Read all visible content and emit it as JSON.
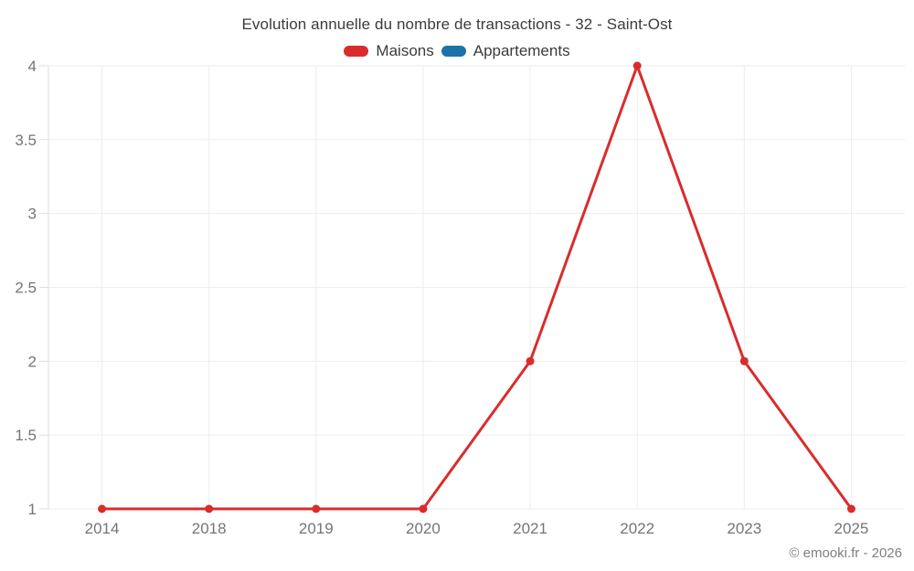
{
  "title": "Evolution annuelle du nombre de transactions - 32 - Saint-Ost",
  "legend": {
    "items": [
      {
        "label": "Maisons",
        "color": "#da2c2c"
      },
      {
        "label": "Appartements",
        "color": "#1b73a8"
      }
    ]
  },
  "footer": {
    "copyright": "© emooki.fr - 2026"
  },
  "colors": {
    "grid": "#ededed",
    "axis": "#dddddd",
    "tick_label": "#757575",
    "title_text": "#3b3b3b",
    "background": "#ffffff"
  },
  "chart_data": {
    "type": "line",
    "title": "Evolution annuelle du nombre de transactions - 32 - Saint-Ost",
    "categories": [
      "2014",
      "2018",
      "2019",
      "2020",
      "2021",
      "2022",
      "2023",
      "2025"
    ],
    "series": [
      {
        "name": "Maisons",
        "color": "#da2c2c",
        "values": [
          1,
          1,
          1,
          1,
          2,
          4,
          2,
          1
        ]
      },
      {
        "name": "Appartements",
        "color": "#1b73a8",
        "values": []
      }
    ],
    "xlabel": "",
    "ylabel": "",
    "ylim": [
      1,
      4
    ],
    "yticks": [
      1,
      1.5,
      2,
      2.5,
      3,
      3.5,
      4
    ],
    "ytick_labels": [
      "1",
      "1.5",
      "2",
      "2.5",
      "3",
      "3.5",
      "4"
    ],
    "grid": true,
    "legend_position": "top"
  }
}
